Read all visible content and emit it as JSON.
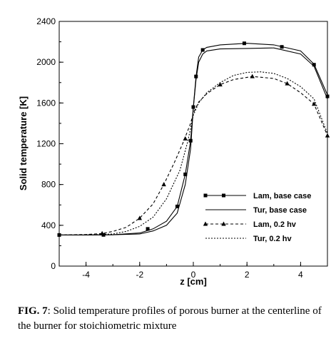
{
  "chart_data": {
    "type": "line",
    "xlabel": "z [cm]",
    "ylabel": "Solid temperature [K]",
    "xlim": [
      -5,
      5
    ],
    "ylim": [
      0,
      2400
    ],
    "x_ticks": [
      "-4",
      "-2",
      "0",
      "2",
      "4"
    ],
    "y_ticks": [
      "0",
      "400",
      "800",
      "1200",
      "1600",
      "2000",
      "2400"
    ],
    "legend_position": "lower-right",
    "series": [
      {
        "name": "Lam, base case",
        "style": "solid",
        "marker": "square",
        "x": [
          -5.0,
          -4.0,
          -3.0,
          -2.0,
          -1.5,
          -1.0,
          -0.6,
          -0.3,
          -0.1,
          0.0,
          0.1,
          0.2,
          0.35,
          0.5,
          1.0,
          2.0,
          3.0,
          4.0,
          4.5,
          5.0
        ],
        "y": [
          305,
          305,
          307,
          325,
          365,
          440,
          585,
          900,
          1230,
          1560,
          1860,
          2050,
          2120,
          2145,
          2170,
          2185,
          2170,
          2110,
          1980,
          1680
        ],
        "markers_x": [
          -5.0,
          -3.35,
          -1.7,
          -0.6,
          -0.3,
          -0.1,
          0.0,
          0.1,
          0.35,
          1.9,
          3.3,
          4.5,
          5.0
        ],
        "markers_y": [
          305,
          306,
          365,
          585,
          900,
          1230,
          1560,
          1860,
          2120,
          2185,
          2150,
          1975,
          1665
        ]
      },
      {
        "name": "Tur, base case",
        "style": "solid",
        "marker": "none",
        "x": [
          -5.0,
          -4.0,
          -3.0,
          -2.0,
          -1.5,
          -1.0,
          -0.6,
          -0.3,
          -0.1,
          0.0,
          0.1,
          0.2,
          0.35,
          0.5,
          1.0,
          2.0,
          3.0,
          4.0,
          4.5,
          5.0
        ],
        "y": [
          305,
          305,
          307,
          315,
          345,
          400,
          520,
          800,
          1150,
          1550,
          1830,
          2000,
          2080,
          2110,
          2130,
          2135,
          2140,
          2080,
          1960,
          1640
        ]
      },
      {
        "name": "Lam, 0.2 hv",
        "style": "dashed",
        "marker": "triangle",
        "x": [
          -5.0,
          -4.0,
          -3.4,
          -3.0,
          -2.5,
          -2.0,
          -1.5,
          -1.1,
          -0.7,
          -0.4,
          -0.1,
          0.0,
          0.2,
          0.5,
          1.0,
          1.5,
          2.2,
          3.0,
          3.5,
          4.0,
          4.5,
          5.0
        ],
        "y": [
          305,
          310,
          320,
          340,
          380,
          470,
          610,
          800,
          1020,
          1200,
          1400,
          1500,
          1610,
          1690,
          1780,
          1830,
          1860,
          1840,
          1790,
          1700,
          1590,
          1280
        ],
        "markers_x": [
          -3.4,
          -2.0,
          -1.1,
          -0.3,
          1.0,
          2.2,
          3.5,
          4.5,
          5.0
        ],
        "markers_y": [
          320,
          470,
          800,
          1250,
          1780,
          1860,
          1790,
          1590,
          1280
        ]
      },
      {
        "name": "Tur, 0.2 hv",
        "style": "dotted",
        "marker": "none",
        "x": [
          -5.0,
          -4.0,
          -3.0,
          -2.5,
          -2.0,
          -1.5,
          -1.0,
          -0.5,
          -0.2,
          0.0,
          0.2,
          0.5,
          1.0,
          1.5,
          2.0,
          2.5,
          3.0,
          3.5,
          4.0,
          4.5,
          5.0
        ],
        "y": [
          305,
          305,
          315,
          340,
          390,
          480,
          660,
          940,
          1230,
          1480,
          1600,
          1700,
          1800,
          1870,
          1900,
          1905,
          1890,
          1840,
          1760,
          1640,
          1300
        ]
      }
    ]
  },
  "caption": {
    "label": "FIG. 7",
    "text": ": Solid temperature profiles of porous burner at the centerline of the burner for stoichiometric mixture"
  }
}
